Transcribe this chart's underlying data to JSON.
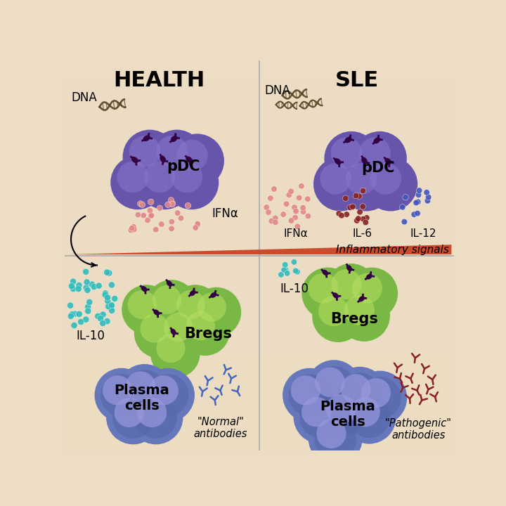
{
  "bg_color": "#ecddc4",
  "bg_top": "#ecddc4",
  "bg_bot": "#e8d9bc",
  "title_health": "HEALTH",
  "title_sle": "SLE",
  "title_fontsize": 22,
  "pdc_color": "#6655aa",
  "pdc_inner": "#8877cc",
  "pdc_label": "pDC",
  "breg_color": "#7ab845",
  "breg_inner": "#b8e060",
  "breg_label": "Bregs",
  "plasma_color": "#6677bb",
  "plasma_inner": "#9999dd",
  "plasma_ring": "#5566aa",
  "plasma_label": "Plasma\ncells",
  "ifna_color": "#e08888",
  "il6_color": "#882222",
  "il10_color": "#33bbbb",
  "il12_color": "#4455bb",
  "antibody_normal_color": "#4466bb",
  "antibody_pathogenic_color": "#882222",
  "dna_color": "#554422",
  "receptor_color": "#330044",
  "inflammatory_text": "Inflammatory signals",
  "inflammatory_fontsize": 11
}
